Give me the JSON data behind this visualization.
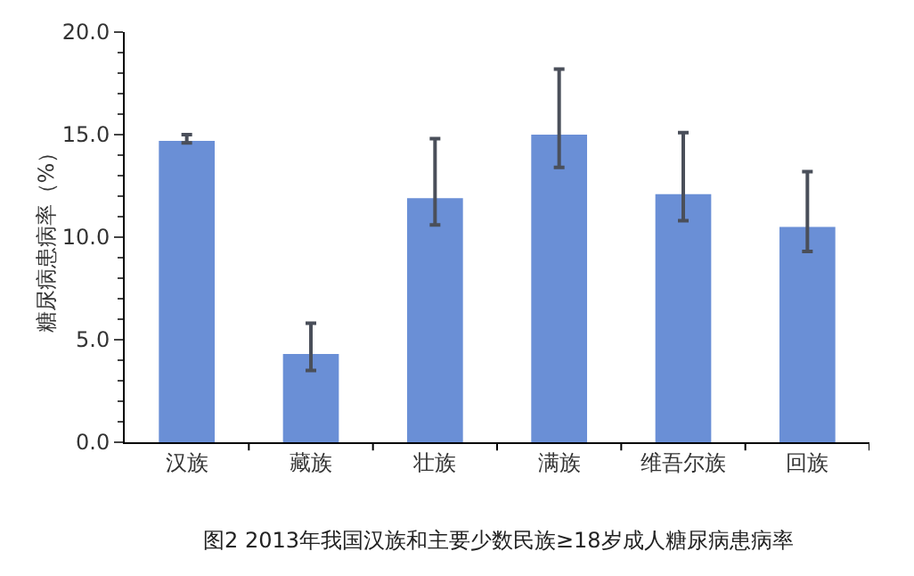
{
  "chart_data": {
    "type": "bar",
    "ylabel": "糖尿病患病率（%）",
    "categories": [
      "汉族",
      "藏族",
      "壮族",
      "满族",
      "维吾尔族",
      "回族"
    ],
    "values": [
      14.7,
      4.3,
      11.9,
      15.0,
      12.1,
      10.5
    ],
    "errors": [
      [
        14.6,
        15.0
      ],
      [
        3.5,
        5.8
      ],
      [
        10.6,
        14.8
      ],
      [
        13.4,
        18.2
      ],
      [
        10.8,
        15.1
      ],
      [
        9.3,
        13.2
      ]
    ],
    "color": "#6a8fd6",
    "ylim": [
      0,
      20
    ],
    "yticks": [
      {
        "value": 0,
        "label": "0.0"
      },
      {
        "value": 5,
        "label": "5.0"
      },
      {
        "value": 10,
        "label": "10.0"
      },
      {
        "value": 15,
        "label": "15.0"
      },
      {
        "value": 20,
        "label": "20.0"
      }
    ],
    "grid": false,
    "annotations": [
      "图2 2013年我国汉族和主要少数民族≥18岁成人糖尿病患病率"
    ]
  }
}
